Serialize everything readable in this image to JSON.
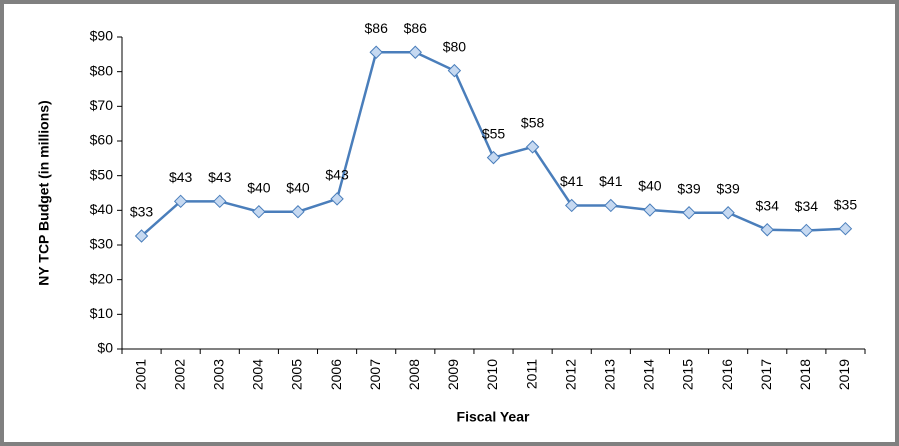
{
  "chart_data": {
    "type": "line",
    "xlabel": "Fiscal Year",
    "ylabel": "NY TCP Budget (in millions)",
    "categories": [
      "2001",
      "2002",
      "2003",
      "2004",
      "2005",
      "2006",
      "2007",
      "2008",
      "2009",
      "2010",
      "2011",
      "2012",
      "2013",
      "2014",
      "2015",
      "2016",
      "2017",
      "2018",
      "2019"
    ],
    "series": [
      {
        "color": "#4a7ebb",
        "values": [
          32.6,
          42.6,
          42.6,
          39.6,
          39.6,
          43.3,
          85.6,
          85.6,
          80.3,
          55.2,
          58.3,
          41.4,
          41.4,
          40.1,
          39.3,
          39.3,
          34.4,
          34.2,
          34.7
        ],
        "value_labels": [
          "$33",
          "$43",
          "$43",
          "$40",
          "$40",
          "$43",
          "$86",
          "$86",
          "$80",
          "$55",
          "$58",
          "$41",
          "$41",
          "$40",
          "$39",
          "$39",
          "$34",
          "$34",
          "$35"
        ]
      }
    ],
    "ylim": [
      0,
      90
    ],
    "yticks": [
      {
        "value": 0,
        "label": "$0"
      },
      {
        "value": 10,
        "label": "$10"
      },
      {
        "value": 20,
        "label": "$20"
      },
      {
        "value": 30,
        "label": "$30"
      },
      {
        "value": 40,
        "label": "$40"
      },
      {
        "value": 50,
        "label": "$50"
      },
      {
        "value": 60,
        "label": "$60"
      },
      {
        "value": 70,
        "label": "$70"
      },
      {
        "value": 80,
        "label": "$80"
      },
      {
        "value": 90,
        "label": "$90"
      }
    ],
    "grid": false
  }
}
